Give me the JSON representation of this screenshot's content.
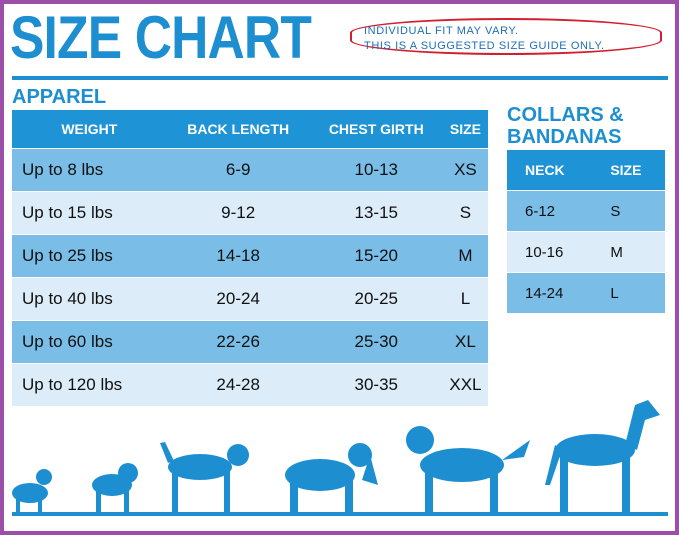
{
  "title": "SIZE CHART",
  "note": {
    "line1": "INDIVIDUAL FIT MAY VARY.",
    "line2": "THIS IS A SUGGESTED SIZE GUIDE ONLY."
  },
  "apparel": {
    "heading": "APPAREL",
    "headers": [
      "WEIGHT",
      "BACK LENGTH",
      "CHEST GIRTH",
      "SIZE"
    ],
    "rows": [
      [
        "Up to 8 lbs",
        "6-9",
        "10-13",
        "XS"
      ],
      [
        "Up to 15 lbs",
        "9-12",
        "13-15",
        "S"
      ],
      [
        "Up to 25 lbs",
        "14-18",
        "15-20",
        "M"
      ],
      [
        "Up to 40 lbs",
        "20-24",
        "20-25",
        "L"
      ],
      [
        "Up to 60 lbs",
        "22-26",
        "25-30",
        "XL"
      ],
      [
        "Up to 120 lbs",
        "24-28",
        "30-35",
        "XXL"
      ]
    ]
  },
  "collars": {
    "heading_line1": "COLLARS &",
    "heading_line2": "BANDANAS",
    "headers": [
      "NECK",
      "SIZE"
    ],
    "rows": [
      [
        "6-12",
        "S"
      ],
      [
        "10-16",
        "M"
      ],
      [
        "14-24",
        "L"
      ]
    ]
  },
  "colors": {
    "brand_blue": "#1d8fd1",
    "row_dark": "#7abde7",
    "row_light": "#dcecf8",
    "note_border": "#d02030",
    "frame": "#9b4fa8"
  }
}
